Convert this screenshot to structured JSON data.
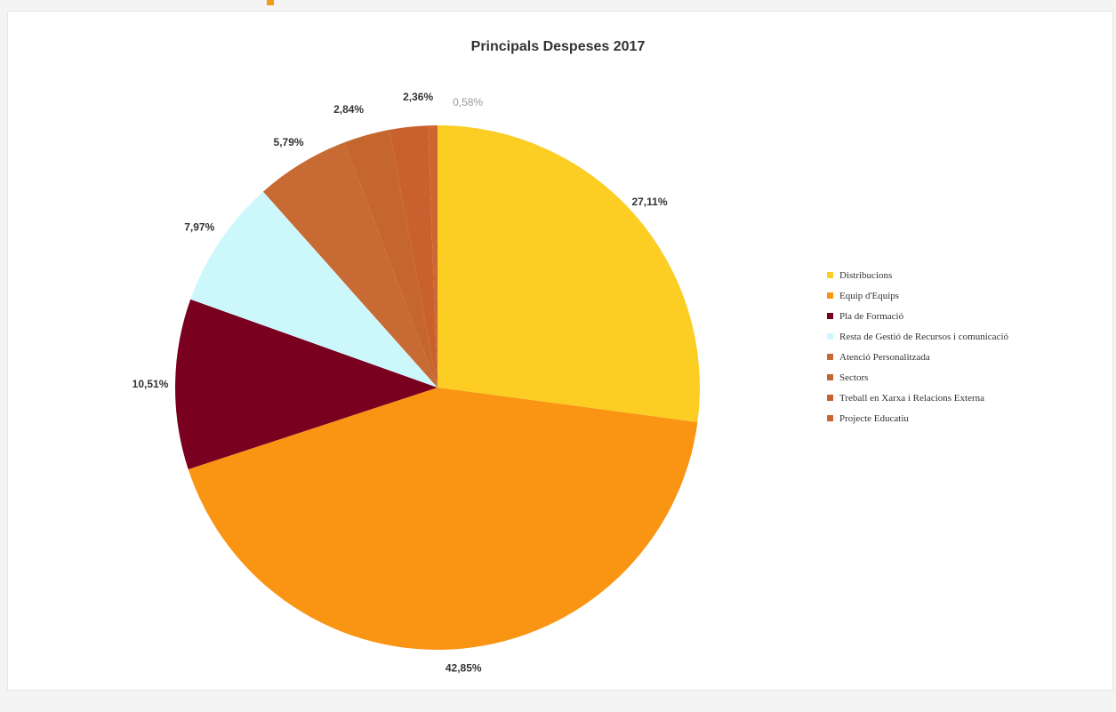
{
  "chart_data": {
    "type": "pie",
    "title": "Principals Despeses 2017",
    "legend_position": "right",
    "slices": [
      {
        "name": "Distribucions",
        "value": 27.11,
        "label": "27,11%",
        "color": "#fccd22"
      },
      {
        "name": "Equip d'Equips",
        "value": 42.85,
        "label": "42,85%",
        "color": "#fa9413"
      },
      {
        "name": "Pla de Formació",
        "value": 10.51,
        "label": "10,51%",
        "color": "#7a0020"
      },
      {
        "name": "Resta de Gestió de Recursos i comunicació",
        "value": 7.97,
        "label": "7,97%",
        "color": "#ccf8fb"
      },
      {
        "name": "Atenció Personalitzada",
        "value": 5.79,
        "label": "5,79%",
        "color": "#c86a33"
      },
      {
        "name": "Sectors",
        "value": 2.84,
        "label": "2,84%",
        "color": "#c4662e"
      },
      {
        "name": "Treball en Xarxa i Relacions Externa",
        "value": 2.36,
        "label": "2,36%",
        "color": "#c9612e"
      },
      {
        "name": "Projecte Educatiu",
        "value": 0.58,
        "label": "0,58%",
        "color": "#cf6530"
      }
    ]
  }
}
